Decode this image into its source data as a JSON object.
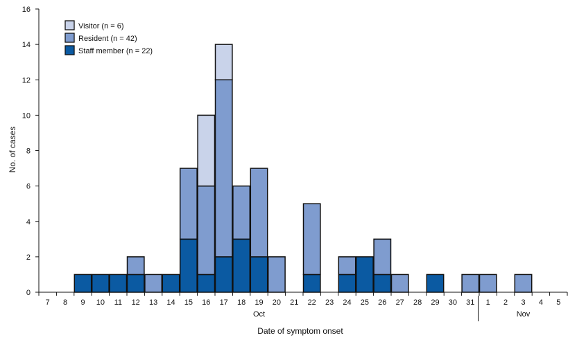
{
  "chart_data": {
    "type": "bar",
    "stacked": true,
    "categories": [
      "7",
      "8",
      "9",
      "10",
      "11",
      "12",
      "13",
      "14",
      "15",
      "16",
      "17",
      "18",
      "19",
      "20",
      "21",
      "22",
      "23",
      "24",
      "25",
      "26",
      "27",
      "28",
      "29",
      "30",
      "31",
      "1",
      "2",
      "3",
      "4",
      "5"
    ],
    "month_labels": [
      {
        "label": "Oct",
        "under_category": "19"
      },
      {
        "label": "Nov",
        "under_category": "3"
      }
    ],
    "series": [
      {
        "name": "Staff member (n = 22)",
        "color": "#0b5aa2",
        "values": [
          0,
          0,
          1,
          1,
          1,
          1,
          0,
          1,
          3,
          1,
          2,
          3,
          2,
          0,
          0,
          1,
          0,
          1,
          2,
          1,
          0,
          0,
          1,
          0,
          0,
          0,
          0,
          0,
          0,
          0
        ]
      },
      {
        "name": "Resident (n = 42)",
        "color": "#7f9ccf",
        "values": [
          0,
          0,
          0,
          0,
          0,
          1,
          1,
          0,
          4,
          5,
          10,
          3,
          5,
          2,
          0,
          4,
          0,
          1,
          0,
          2,
          1,
          0,
          0,
          0,
          1,
          1,
          0,
          1,
          0,
          0
        ]
      },
      {
        "name": "Visitor (n = 6)",
        "color": "#c9d3ea",
        "values": [
          0,
          0,
          0,
          0,
          0,
          0,
          0,
          0,
          0,
          4,
          2,
          0,
          0,
          0,
          0,
          0,
          0,
          0,
          0,
          0,
          0,
          0,
          0,
          0,
          0,
          0,
          0,
          0,
          0,
          0
        ]
      }
    ],
    "ylim": [
      0,
      16
    ],
    "yticks": [
      0,
      2,
      4,
      6,
      8,
      10,
      12,
      14,
      16
    ],
    "xlabel": "Date of symptom onset",
    "ylabel": "No. of cases",
    "legend_position": "top-left",
    "grid": false
  }
}
